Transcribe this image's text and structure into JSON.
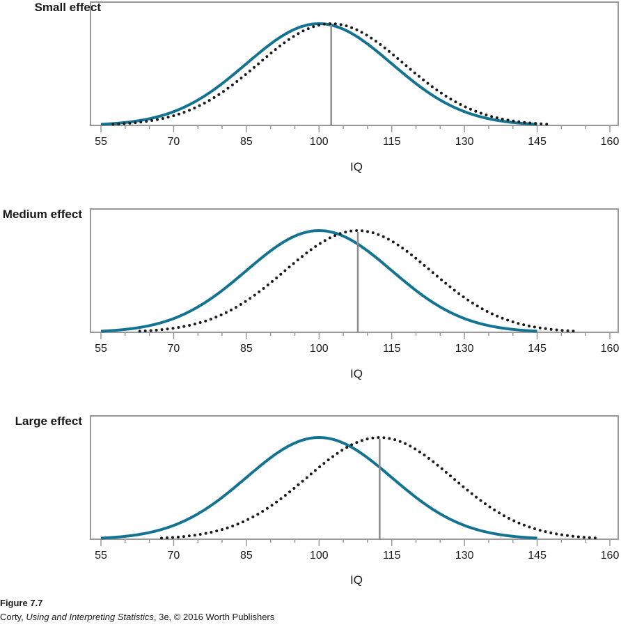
{
  "figure": {
    "label": "Figure 7.7",
    "credit_prefix": "Corty, ",
    "credit_title": "Using and Interpreting Statistics",
    "credit_suffix": ", 3e, © 2016 Worth Publishers"
  },
  "colors": {
    "population": "#137391",
    "sample": "#1a1a1a",
    "frame": "#999999",
    "marker": "#8c8c8c"
  },
  "chart_data": [
    {
      "type": "line",
      "title": "Small effect",
      "xlabel": "IQ",
      "ylabel": "",
      "xlim": [
        55,
        160
      ],
      "xticks": [
        55,
        70,
        85,
        100,
        115,
        130,
        145,
        160
      ],
      "minor_ticks": [
        60,
        65,
        75,
        80,
        90,
        95,
        105,
        110,
        120,
        125,
        135,
        140,
        150,
        155
      ],
      "series": [
        {
          "style": "solid",
          "mean": 100,
          "sd": 15,
          "x_range": [
            55,
            145
          ]
        },
        {
          "style": "dotted",
          "mean": 102.5,
          "sd": 15,
          "x_range": [
            57.5,
            147.5
          ]
        }
      ],
      "marker_x": 102.5
    },
    {
      "type": "line",
      "title": "Medium effect",
      "xlabel": "IQ",
      "ylabel": "",
      "xlim": [
        55,
        160
      ],
      "xticks": [
        55,
        70,
        85,
        100,
        115,
        130,
        145,
        160
      ],
      "minor_ticks": [
        60,
        65,
        75,
        80,
        90,
        95,
        105,
        110,
        120,
        125,
        135,
        140,
        150,
        155
      ],
      "series": [
        {
          "style": "solid",
          "mean": 100,
          "sd": 15,
          "x_range": [
            55,
            145
          ]
        },
        {
          "style": "dotted",
          "mean": 108,
          "sd": 15,
          "x_range": [
            63,
            153
          ]
        }
      ],
      "marker_x": 108
    },
    {
      "type": "line",
      "title": "Large effect",
      "xlabel": "IQ",
      "ylabel": "",
      "xlim": [
        55,
        160
      ],
      "xticks": [
        55,
        70,
        85,
        100,
        115,
        130,
        145,
        160
      ],
      "minor_ticks": [
        60,
        65,
        75,
        80,
        90,
        95,
        105,
        110,
        120,
        125,
        135,
        140,
        150,
        155
      ],
      "series": [
        {
          "style": "solid",
          "mean": 100,
          "sd": 15,
          "x_range": [
            55,
            145
          ]
        },
        {
          "style": "dotted",
          "mean": 112.5,
          "sd": 15,
          "x_range": [
            67.5,
            157.5
          ]
        }
      ],
      "marker_x": 112.5
    }
  ]
}
